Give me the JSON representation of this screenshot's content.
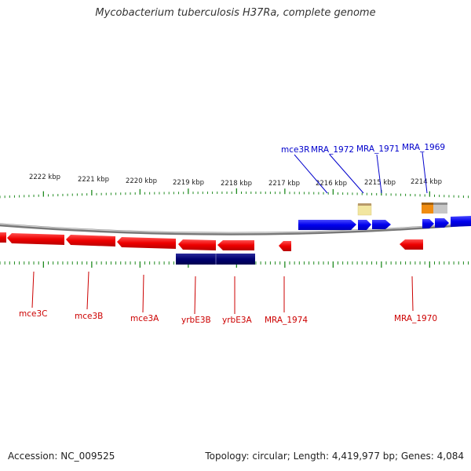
{
  "title": "Mycobacterium tuberculosis H37Ra, complete genome",
  "footer": {
    "accession": "Accession: NC_009525",
    "summary": "Topology: circular; Length: 4,419,977 bp; Genes: 4,084"
  },
  "colors": {
    "tick": "#1f8a1f",
    "backbone": "#888888",
    "forward_gene": "#0000ee",
    "reverse_gene": "#ee0000",
    "rna": "#000070",
    "forward_label": "#0000cc",
    "reverse_label": "#cc0000"
  },
  "scale_ticks": [
    "2222 kbp",
    "2221 kbp",
    "2220 kbp",
    "2219 kbp",
    "2218 kbp",
    "2217 kbp",
    "2216 kbp",
    "2215 kbp",
    "2214 kbp"
  ],
  "forward_labels": [
    "mce3R",
    "MRA_1972",
    "MRA_1971",
    "MRA_1969"
  ],
  "reverse_labels": [
    "mce3C",
    "mce3B",
    "mce3A",
    "yrbE3B",
    "yrbE3A",
    "MRA_1974",
    "MRA_1970"
  ]
}
